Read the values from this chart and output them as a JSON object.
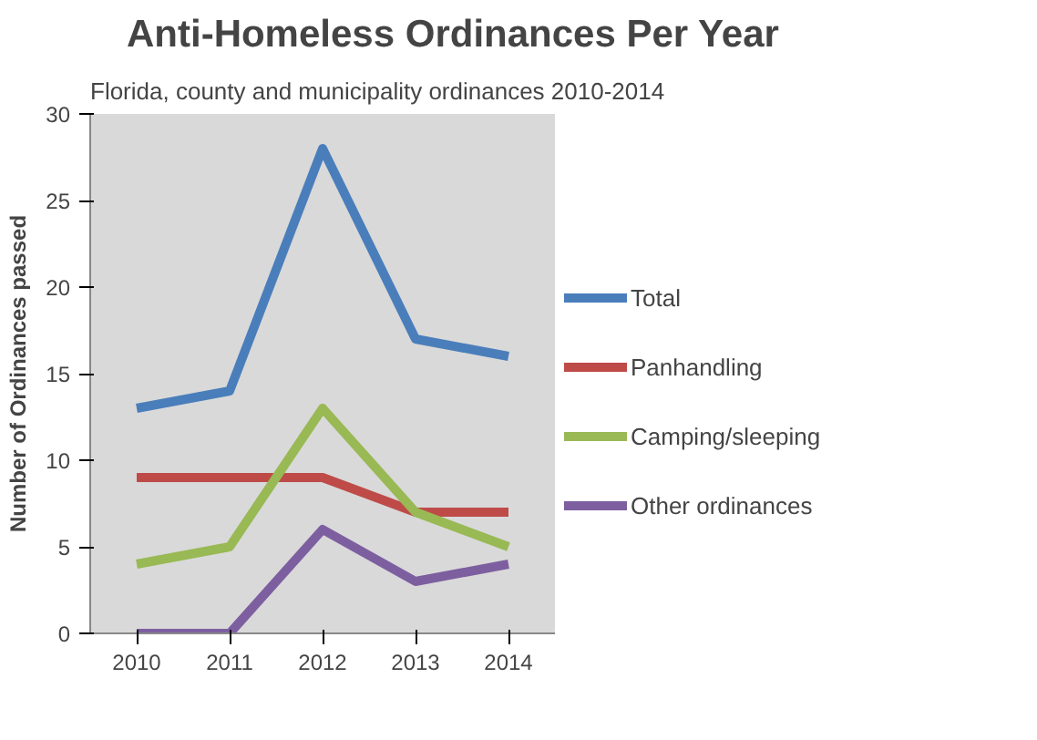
{
  "chart_data": {
    "type": "line",
    "title": "Anti-Homeless Ordinances Per Year",
    "subtitle": "Florida, county and municipality ordinances 2010-2014",
    "ylabel": "Number of Ordinances passed",
    "categories": [
      "2010",
      "2011",
      "2012",
      "2013",
      "2014"
    ],
    "series": [
      {
        "name": "Total",
        "color": "#4a7ebb",
        "values": [
          13,
          14,
          28,
          17,
          16
        ]
      },
      {
        "name": "Panhandling",
        "color": "#be4b48",
        "values": [
          9,
          9,
          9,
          7,
          7
        ]
      },
      {
        "name": "Camping/sleeping",
        "color": "#98b954",
        "values": [
          4,
          5,
          13,
          7,
          5
        ]
      },
      {
        "name": "Other ordinances",
        "color": "#7d5fa0",
        "values": [
          0,
          0,
          6,
          3,
          4
        ]
      }
    ],
    "ylim": [
      0,
      30
    ],
    "yticks": [
      0,
      5,
      10,
      15,
      20,
      25,
      30
    ],
    "grid": false,
    "legend": "right",
    "marker": "none",
    "line_style": "solid"
  }
}
